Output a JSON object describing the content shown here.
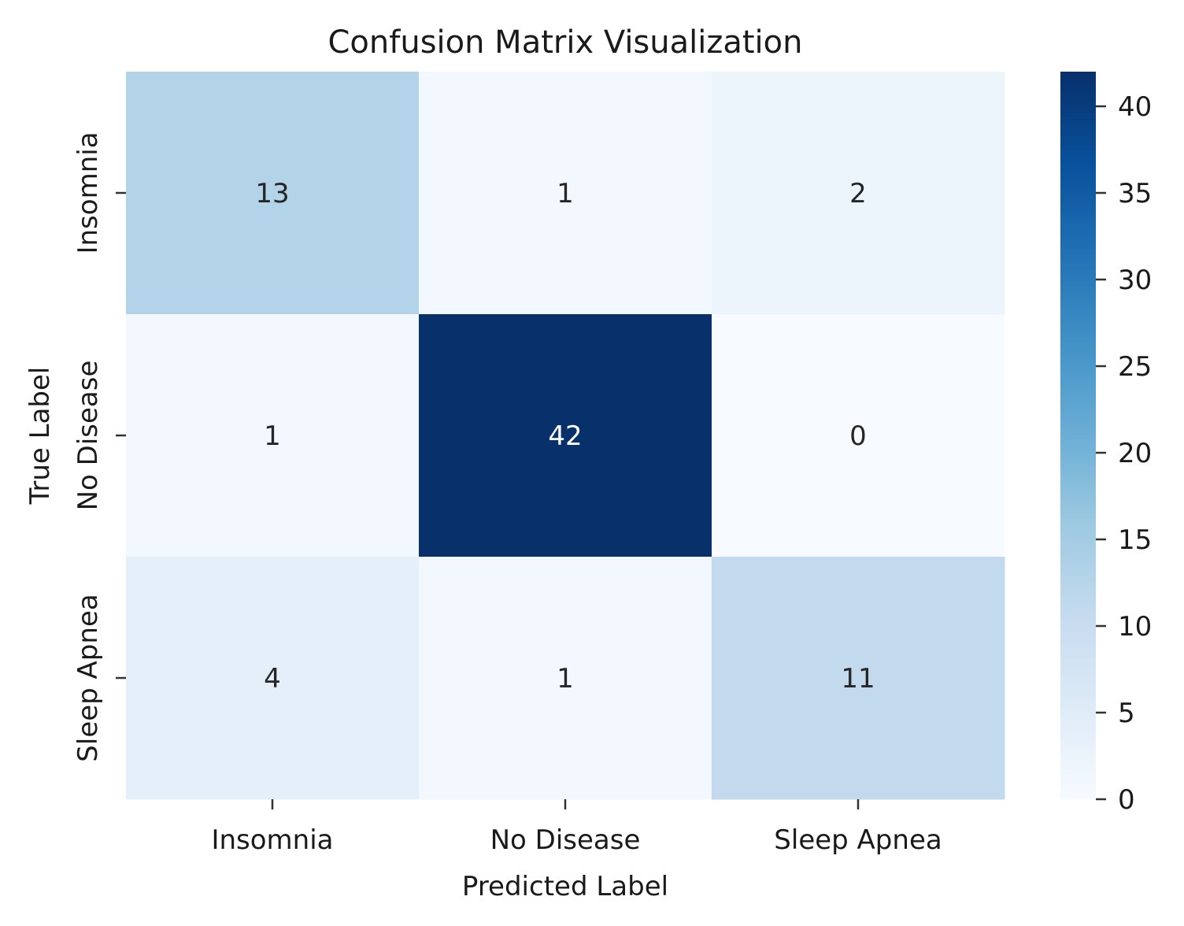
{
  "chart_data": {
    "type": "heatmap",
    "title": "Confusion Matrix Visualization",
    "xlabel": "Predicted Label",
    "ylabel": "True Label",
    "x_categories": [
      "Insomnia",
      "No Disease",
      "Sleep Apnea"
    ],
    "y_categories": [
      "Insomnia",
      "No Disease",
      "Sleep Apnea"
    ],
    "matrix": [
      [
        13,
        1,
        2
      ],
      [
        1,
        42,
        0
      ],
      [
        4,
        1,
        11
      ]
    ],
    "colormap": "Blues",
    "colorbar": {
      "range": [
        0,
        42
      ],
      "ticks": [
        0,
        5,
        10,
        15,
        20,
        25,
        30,
        35,
        40
      ]
    },
    "grid": false
  }
}
